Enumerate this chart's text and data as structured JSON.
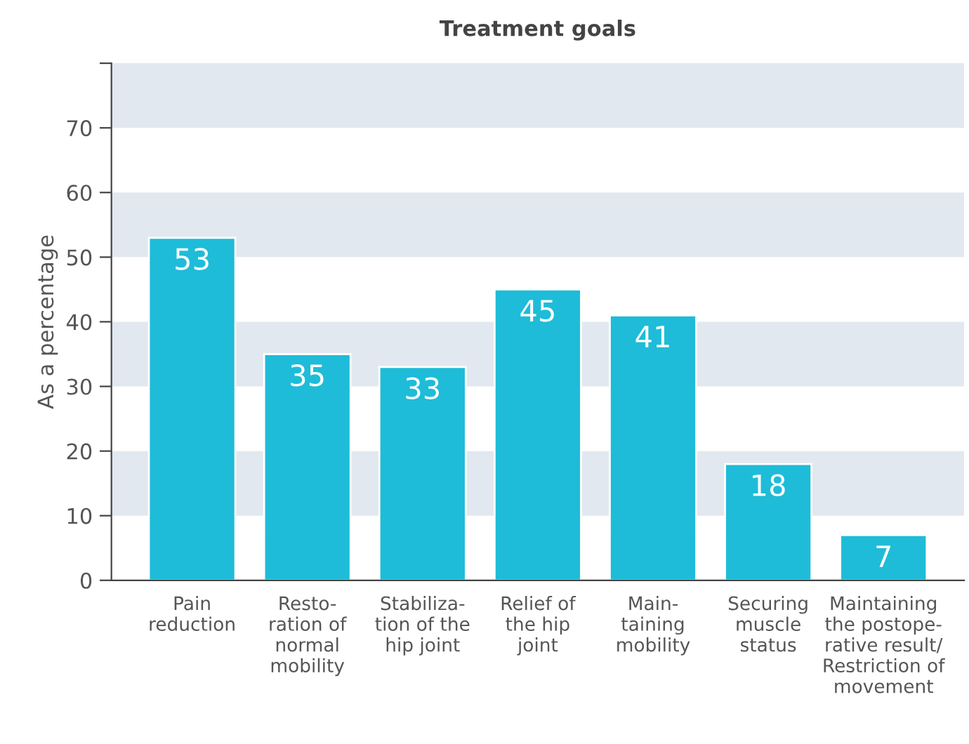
{
  "chart_data": {
    "type": "bar",
    "title": "Treatment goals",
    "ylabel": "As a percentage",
    "categories": [
      "Pain\nreduction",
      "Resto-\nration of\nnormal\nmobility",
      "Stabiliza-\ntion of the\nhip joint",
      "Relief of\nthe hip\njoint",
      "Main-\ntaining\nmobility",
      "Securing\nmuscle\nstatus",
      "Maintaining\nthe postope-\nrative result/\nRestriction of\nmovement"
    ],
    "values": [
      53,
      35,
      33,
      45,
      41,
      18,
      7
    ],
    "color": "#1ebcd8",
    "data_labels": true,
    "ylim": [
      0,
      80
    ],
    "yticks": [
      0,
      10,
      20,
      30,
      40,
      50,
      60,
      70,
      {
        "value": 80,
        "label": null
      }
    ],
    "bands": [
      {
        "axis": "y",
        "from": 10,
        "to": 20,
        "color": "#e2e8ef"
      },
      {
        "axis": "y",
        "from": 30,
        "to": 40,
        "color": "#e2e8ef"
      },
      {
        "axis": "y",
        "from": 50,
        "to": 60,
        "color": "#e2e8ef"
      },
      {
        "axis": "y",
        "from": 70,
        "to": 80,
        "color": "#e2e8ef"
      }
    ],
    "grid": false,
    "legend": false
  }
}
